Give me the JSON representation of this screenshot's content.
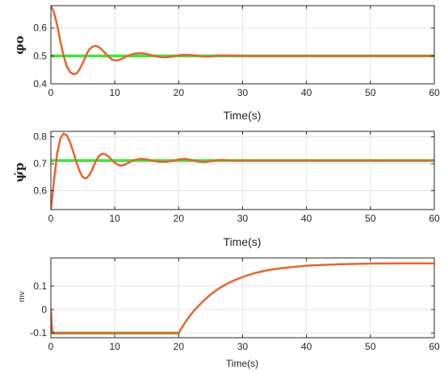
{
  "chart_data": [
    {
      "type": "line",
      "title": "",
      "xlabel": "Time(s)",
      "ylabel": "φo",
      "xlim": [
        0,
        60
      ],
      "ylim": [
        0.4,
        0.68
      ],
      "xticks": [
        0,
        10,
        20,
        30,
        40,
        50,
        60
      ],
      "xtick_labels": [
        "0",
        "10",
        "20",
        "30",
        "40",
        "50",
        "60"
      ],
      "yticks": [
        0.4,
        0.5,
        0.6
      ],
      "ytick_labels": [
        "0.4",
        "0.5",
        "0.6"
      ],
      "grid": true,
      "series": [
        {
          "color": "#39e63a",
          "x": [
            0,
            0.5,
            1,
            2,
            3,
            4,
            5,
            6,
            7,
            8,
            9,
            10,
            11,
            12,
            13,
            14,
            15,
            16,
            17,
            18,
            19,
            20,
            21,
            22,
            23,
            24,
            25,
            26,
            27,
            28,
            60
          ],
          "y": [
            0.5,
            0.5,
            0.5,
            0.5,
            0.5,
            0.5,
            0.5,
            0.5,
            0.5,
            0.5,
            0.5,
            0.5,
            0.5,
            0.5,
            0.5,
            0.5,
            0.5,
            0.5,
            0.5,
            0.5,
            0.5,
            0.5,
            0.5,
            0.5,
            0.5,
            0.5,
            0.5,
            0.5,
            0.5,
            0.5,
            0.5
          ]
        },
        {
          "color": "#e8632b",
          "x": [
            0,
            0.5,
            1,
            1.5,
            2,
            2.5,
            3,
            3.5,
            4,
            4.5,
            5,
            5.5,
            6,
            6.5,
            7,
            7.5,
            8,
            8.5,
            9,
            9.5,
            10,
            10.5,
            11,
            12,
            13,
            14,
            15,
            16,
            17,
            18,
            19,
            20,
            21,
            22,
            23,
            24,
            25,
            26,
            27,
            28,
            30,
            32,
            35,
            40,
            50,
            60
          ],
          "y": [
            0.68,
            0.655,
            0.61,
            0.55,
            0.5,
            0.462,
            0.442,
            0.435,
            0.437,
            0.452,
            0.475,
            0.502,
            0.523,
            0.533,
            0.536,
            0.532,
            0.522,
            0.51,
            0.498,
            0.488,
            0.484,
            0.484,
            0.488,
            0.5,
            0.508,
            0.51,
            0.507,
            0.501,
            0.496,
            0.495,
            0.498,
            0.502,
            0.504,
            0.503,
            0.5,
            0.498,
            0.498,
            0.501,
            0.502,
            0.501,
            0.5,
            0.5,
            0.5,
            0.5,
            0.5,
            0.5
          ]
        }
      ]
    },
    {
      "type": "line",
      "title": "",
      "xlabel": "Time(s)",
      "ylabel": "ψ̇p",
      "xlim": [
        0,
        60
      ],
      "ylim": [
        0.53,
        0.82
      ],
      "xticks": [
        0,
        10,
        20,
        30,
        40,
        50,
        60
      ],
      "xtick_labels": [
        "0",
        "10",
        "20",
        "30",
        "40",
        "50",
        "60"
      ],
      "yticks": [
        0.6,
        0.7,
        0.8
      ],
      "ytick_labels": [
        "0.6",
        "0.7",
        "0.8"
      ],
      "grid": true,
      "series": [
        {
          "color": "#39e63a",
          "x": [
            0,
            5,
            10,
            15,
            20,
            25,
            28,
            60
          ],
          "y": [
            0.712,
            0.712,
            0.712,
            0.712,
            0.712,
            0.712,
            0.712,
            0.712
          ]
        },
        {
          "color": "#e8632b",
          "x": [
            0,
            0.5,
            1,
            1.5,
            2,
            2.5,
            3,
            3.5,
            4,
            4.5,
            5,
            5.5,
            6,
            6.5,
            7,
            7.5,
            8,
            8.5,
            9,
            9.5,
            10,
            10.5,
            11,
            11.5,
            12,
            13,
            14,
            15,
            16,
            17,
            18,
            19,
            20,
            21,
            22,
            23,
            24,
            25,
            26,
            27,
            28,
            30,
            35,
            40,
            50,
            60
          ],
          "y": [
            0.53,
            0.64,
            0.74,
            0.795,
            0.812,
            0.805,
            0.78,
            0.745,
            0.706,
            0.672,
            0.65,
            0.645,
            0.657,
            0.68,
            0.708,
            0.728,
            0.737,
            0.735,
            0.727,
            0.715,
            0.704,
            0.696,
            0.693,
            0.696,
            0.702,
            0.713,
            0.718,
            0.716,
            0.711,
            0.707,
            0.707,
            0.71,
            0.716,
            0.718,
            0.714,
            0.708,
            0.706,
            0.709,
            0.713,
            0.714,
            0.712,
            0.712,
            0.712,
            0.712,
            0.712,
            0.712
          ]
        }
      ]
    },
    {
      "type": "line",
      "title": "",
      "xlabel": "Time(s)",
      "ylabel": "mv",
      "xlim": [
        0,
        60
      ],
      "ylim": [
        -0.12,
        0.22
      ],
      "xticks": [
        0,
        10,
        20,
        30,
        40,
        50,
        60
      ],
      "xtick_labels": [
        "0",
        "10",
        "20",
        "30",
        "40",
        "50",
        "60"
      ],
      "yticks": [
        -0.1,
        0,
        0.1
      ],
      "ytick_labels": [
        "-0.1",
        "0",
        "0.1"
      ],
      "grid": true,
      "series": [
        {
          "color": "#39e63a",
          "x": [
            0,
            0.3,
            0.6,
            1,
            5,
            10,
            15,
            20
          ],
          "y": [
            -0.08,
            -0.1,
            -0.1,
            -0.1,
            -0.1,
            -0.1,
            -0.1,
            -0.1
          ]
        },
        {
          "color": "#e8632b",
          "x": [
            0,
            0.2,
            0.5,
            1,
            5,
            10,
            15,
            19.9,
            20,
            20.5,
            21,
            21.5,
            22,
            22.5,
            23,
            24,
            25,
            26,
            27,
            28,
            29,
            30,
            32,
            34,
            36,
            38,
            40,
            45,
            50,
            55,
            60
          ],
          "y": [
            0.0,
            -0.09,
            -0.1,
            -0.1,
            -0.1,
            -0.1,
            -0.1,
            -0.1,
            -0.1,
            -0.077,
            -0.055,
            -0.036,
            -0.018,
            -0.002,
            0.013,
            0.04,
            0.064,
            0.084,
            0.101,
            0.116,
            0.128,
            0.139,
            0.156,
            0.168,
            0.176,
            0.182,
            0.187,
            0.193,
            0.196,
            0.197,
            0.197
          ]
        }
      ]
    }
  ]
}
